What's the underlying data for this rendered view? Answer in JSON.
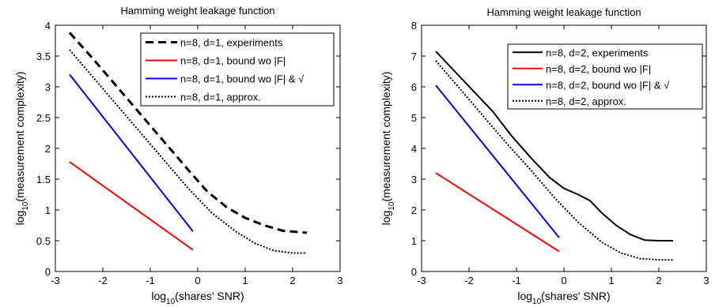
{
  "chart_data": [
    {
      "type": "line",
      "title": "Hamming weight leakage function",
      "xlabel": "log",
      "xlabel_sub": "10",
      "xlabel_rest": "(shares' SNR)",
      "ylabel": "log",
      "ylabel_sub": "10",
      "ylabel_rest": "(measurement complexity)",
      "xlim": [
        -3,
        3
      ],
      "ylim": [
        0,
        4
      ],
      "xticks": [
        "-3",
        "-2",
        "-1",
        "0",
        "1",
        "2",
        "3"
      ],
      "yticks": [
        "0",
        "0.5",
        "1",
        "1.5",
        "2",
        "2.5",
        "3",
        "3.5",
        "4"
      ],
      "grid": false,
      "legend_position": "top-right",
      "series": [
        {
          "name": "n=8, d=1, experiments",
          "color": "#000000",
          "style": "dashed",
          "width": 3,
          "points": [
            [
              -2.7,
              3.88
            ],
            [
              -2.2,
              3.45
            ],
            [
              -1.7,
              3.0
            ],
            [
              -1.2,
              2.55
            ],
            [
              -0.7,
              2.1
            ],
            [
              -0.2,
              1.65
            ],
            [
              0.2,
              1.3
            ],
            [
              0.6,
              1.05
            ],
            [
              1.0,
              0.87
            ],
            [
              1.4,
              0.75
            ],
            [
              1.8,
              0.66
            ],
            [
              2.3,
              0.63
            ]
          ]
        },
        {
          "name": "n=8, d=1, bound wo |F|",
          "color": "#ff0000",
          "style": "solid",
          "width": 2,
          "points": [
            [
              -2.7,
              1.78
            ],
            [
              -0.1,
              0.35
            ]
          ]
        },
        {
          "name": "n=8, d=1, bound wo |F| & √",
          "color": "#0000ff",
          "style": "solid",
          "width": 2,
          "points": [
            [
              -2.7,
              3.2
            ],
            [
              -0.1,
              0.65
            ]
          ]
        },
        {
          "name": "n=8, d=1, approx.",
          "color": "#000000",
          "style": "dotted",
          "width": 2,
          "points": [
            [
              -2.7,
              3.6
            ],
            [
              -2.2,
              3.15
            ],
            [
              -1.7,
              2.7
            ],
            [
              -1.2,
              2.25
            ],
            [
              -0.7,
              1.8
            ],
            [
              -0.2,
              1.35
            ],
            [
              0.3,
              0.95
            ],
            [
              0.8,
              0.65
            ],
            [
              1.2,
              0.46
            ],
            [
              1.6,
              0.34
            ],
            [
              2.0,
              0.3
            ],
            [
              2.3,
              0.3
            ]
          ]
        }
      ]
    },
    {
      "type": "line",
      "title": "Hamming weight leakage function",
      "xlabel": "log",
      "xlabel_sub": "10",
      "xlabel_rest": "(shares' SNR)",
      "ylabel": "log",
      "ylabel_sub": "10",
      "ylabel_rest": "(measurement complexity)",
      "xlim": [
        -3,
        3
      ],
      "ylim": [
        0,
        8
      ],
      "xticks": [
        "-3",
        "-2",
        "-1",
        "0",
        "1",
        "2",
        "3"
      ],
      "yticks": [
        "0",
        "1",
        "2",
        "3",
        "4",
        "5",
        "6",
        "7",
        "8"
      ],
      "grid": false,
      "legend_position": "top-right",
      "series": [
        {
          "name": "n=8, d=2, experiments",
          "color": "#000000",
          "style": "solid",
          "width": 2,
          "points": [
            [
              -2.7,
              7.15
            ],
            [
              -2.3,
              6.5
            ],
            [
              -1.9,
              5.85
            ],
            [
              -1.5,
              5.2
            ],
            [
              -1.1,
              4.4
            ],
            [
              -0.7,
              3.7
            ],
            [
              -0.3,
              3.05
            ],
            [
              0.0,
              2.7
            ],
            [
              0.3,
              2.5
            ],
            [
              0.55,
              2.3
            ],
            [
              0.8,
              1.9
            ],
            [
              1.1,
              1.5
            ],
            [
              1.4,
              1.2
            ],
            [
              1.7,
              1.02
            ],
            [
              2.0,
              1.0
            ],
            [
              2.3,
              1.0
            ]
          ]
        },
        {
          "name": "n=8, d=2, bound wo |F|",
          "color": "#ff0000",
          "style": "solid",
          "width": 2,
          "points": [
            [
              -2.7,
              3.2
            ],
            [
              -0.1,
              0.65
            ]
          ]
        },
        {
          "name": "n=8, d=2, bound wo |F| & √",
          "color": "#0000ff",
          "style": "solid",
          "width": 2,
          "points": [
            [
              -2.7,
              6.05
            ],
            [
              -0.1,
              1.1
            ]
          ]
        },
        {
          "name": "n=8, d=2, approx.",
          "color": "#000000",
          "style": "dotted",
          "width": 2,
          "points": [
            [
              -2.7,
              6.85
            ],
            [
              -2.2,
              5.95
            ],
            [
              -1.7,
              5.05
            ],
            [
              -1.2,
              4.15
            ],
            [
              -0.7,
              3.3
            ],
            [
              -0.2,
              2.4
            ],
            [
              0.3,
              1.6
            ],
            [
              0.8,
              0.95
            ],
            [
              1.2,
              0.6
            ],
            [
              1.6,
              0.42
            ],
            [
              2.0,
              0.38
            ],
            [
              2.3,
              0.38
            ]
          ]
        }
      ]
    }
  ]
}
